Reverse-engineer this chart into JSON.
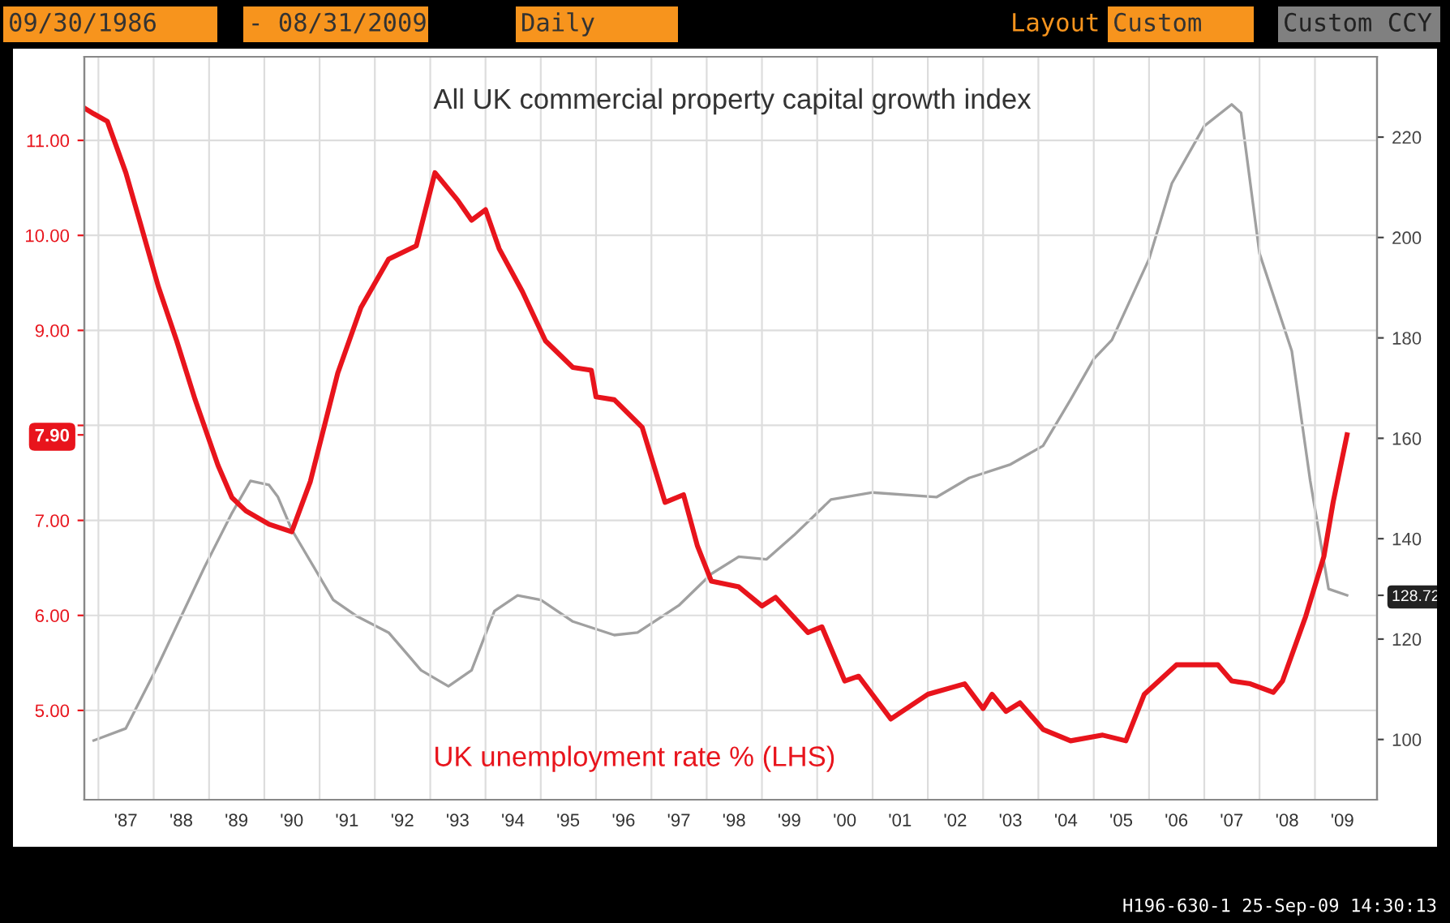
{
  "chart_data": {
    "type": "line",
    "title": "All UK commercial property capital growth index",
    "annotations": [
      "09/30/1986",
      "- 08/31/2009",
      "Daily",
      "Layout",
      "Custom",
      "Custom CCY",
      "H196-630-1 25-Sep-09 14:30:13"
    ],
    "xlim": [
      "1986-09-30",
      "2010-02-15"
    ],
    "xticks": [
      {
        "value": "1987-01-01",
        "label": null
      },
      {
        "value": "1988-01-01",
        "label": null
      },
      {
        "value": "1989-01-01",
        "label": null
      },
      {
        "value": "1990-01-01",
        "label": null
      },
      {
        "value": "1991-01-01",
        "label": null
      },
      {
        "value": "1992-01-01",
        "label": null
      },
      {
        "value": "1993-01-01",
        "label": null
      },
      {
        "value": "1994-01-01",
        "label": null
      },
      {
        "value": "1995-01-01",
        "label": null
      },
      {
        "value": "1996-01-01",
        "label": null
      },
      {
        "value": "1997-01-01",
        "label": null
      },
      {
        "value": "1998-01-01",
        "label": null
      },
      {
        "value": "1999-01-01",
        "label": null
      },
      {
        "value": "2000-01-01",
        "label": null
      },
      {
        "value": "2001-01-01",
        "label": null
      },
      {
        "value": "2002-01-01",
        "label": null
      },
      {
        "value": "2003-01-01",
        "label": null
      },
      {
        "value": "2004-01-01",
        "label": null
      },
      {
        "value": "2005-01-01",
        "label": null
      },
      {
        "value": "2006-01-01",
        "label": null
      },
      {
        "value": "2007-01-01",
        "label": null
      },
      {
        "value": "2008-01-01",
        "label": null
      },
      {
        "value": "2009-01-01",
        "label": null
      },
      {
        "value": "1987-07-01",
        "label": "'87"
      },
      {
        "value": "1988-07-01",
        "label": "'88"
      },
      {
        "value": "1989-07-01",
        "label": "'89"
      },
      {
        "value": "1990-07-01",
        "label": "'90"
      },
      {
        "value": "1991-07-01",
        "label": "'91"
      },
      {
        "value": "1992-07-01",
        "label": "'92"
      },
      {
        "value": "1993-07-01",
        "label": "'93"
      },
      {
        "value": "1994-07-01",
        "label": "'94"
      },
      {
        "value": "1995-07-01",
        "label": "'95"
      },
      {
        "value": "1996-07-01",
        "label": "'96"
      },
      {
        "value": "1997-07-01",
        "label": "'97"
      },
      {
        "value": "1998-07-01",
        "label": "'98"
      },
      {
        "value": "1999-07-01",
        "label": "'99"
      },
      {
        "value": "2000-07-01",
        "label": "'00"
      },
      {
        "value": "2001-07-01",
        "label": "'01"
      },
      {
        "value": "2002-07-01",
        "label": "'02"
      },
      {
        "value": "2003-07-01",
        "label": "'03"
      },
      {
        "value": "2004-07-01",
        "label": "'04"
      },
      {
        "value": "2005-07-01",
        "label": "'05"
      },
      {
        "value": "2006-07-01",
        "label": "'06"
      },
      {
        "value": "2007-07-01",
        "label": "'07"
      },
      {
        "value": "2008-07-01",
        "label": "'08"
      },
      {
        "value": "2009-07-01",
        "label": "'09"
      }
    ],
    "ylim": [
      4.06,
      11.88
    ],
    "yticks": [
      {
        "value": 5,
        "label": "5.00"
      },
      {
        "value": 6,
        "label": "6.00"
      },
      {
        "value": 7,
        "label": "7.00"
      },
      {
        "value": 8,
        "label": null
      },
      {
        "value": 9,
        "label": "9.00"
      },
      {
        "value": 10,
        "label": "10.00"
      },
      {
        "value": 11,
        "label": "11.00"
      },
      {
        "value": 7.9,
        "label": "7.90"
      }
    ],
    "y2lim": [
      88,
      236
    ],
    "y2ticks": [
      100,
      120,
      140,
      160,
      180,
      200,
      220,
      {
        "value": 128.72,
        "label": "128.72"
      }
    ],
    "grid": true,
    "legend": false,
    "series": [
      {
        "name": "UK unemployment rate % (LHS)",
        "color": "#e8141c",
        "x": [
          "1986-10",
          "1986-12",
          "1987-03",
          "1987-07",
          "1987-10",
          "1988-02",
          "1988-06",
          "1988-10",
          "1989-03",
          "1989-06",
          "1989-09",
          "1990-02",
          "1990-07",
          "1990-11",
          "1991-05",
          "1991-10",
          "1992-04",
          "1992-10",
          "1993-02",
          "1993-07",
          "1993-10",
          "1994-01",
          "1994-04",
          "1994-09",
          "1995-02",
          "1995-08",
          "1995-12",
          "1996-01",
          "1996-05",
          "1996-11",
          "1997-04",
          "1997-08",
          "1997-11",
          "1998-02",
          "1998-08",
          "1999-01",
          "1999-04",
          "1999-11",
          "2000-02",
          "2000-07",
          "2000-10",
          "2001-05",
          "2002-01",
          "2002-09",
          "2003-01",
          "2003-03",
          "2003-06",
          "2003-09",
          "2004-02",
          "2004-08",
          "2005-03",
          "2005-08",
          "2005-12",
          "2006-07",
          "2006-11",
          "2007-04",
          "2007-07",
          "2007-11",
          "2008-04",
          "2008-06",
          "2008-11",
          "2009-03",
          "2009-05",
          "2009-08"
        ],
        "values": [
          11.34,
          11.28,
          11.2,
          10.66,
          10.15,
          9.46,
          8.89,
          8.27,
          7.58,
          7.24,
          7.1,
          6.96,
          6.88,
          7.41,
          8.55,
          9.24,
          9.75,
          9.89,
          10.66,
          10.37,
          10.16,
          10.27,
          9.86,
          9.41,
          8.89,
          8.61,
          8.58,
          8.3,
          8.27,
          7.98,
          7.19,
          7.27,
          6.73,
          6.36,
          6.3,
          6.1,
          6.19,
          5.82,
          5.88,
          5.31,
          5.36,
          4.91,
          5.17,
          5.28,
          5.02,
          5.17,
          4.99,
          5.08,
          4.8,
          4.68,
          4.74,
          4.68,
          5.17,
          5.48,
          5.48,
          5.48,
          5.31,
          5.28,
          5.19,
          5.31,
          5.99,
          6.62,
          7.19,
          7.9
        ]
      },
      {
        "color": "#a0a0a0",
        "axis": "y2",
        "x": [
          "1986-12",
          "1987-07",
          "1988-02",
          "1988-12",
          "1989-06",
          "1989-10",
          "1990-02",
          "1990-04",
          "1990-07",
          "1991-04",
          "1991-09",
          "1992-04",
          "1992-11",
          "1993-05",
          "1993-10",
          "1994-03",
          "1994-08",
          "1995-01",
          "1995-08",
          "1996-05",
          "1996-10",
          "1997-07",
          "1998-02",
          "1998-08",
          "1999-02",
          "1999-08",
          "2000-04",
          "2001-01",
          "2002-03",
          "2002-10",
          "2003-07",
          "2004-02",
          "2004-08",
          "2005-01",
          "2005-05",
          "2006-01",
          "2006-06",
          "2007-01",
          "2007-07",
          "2007-09",
          "2008-01",
          "2008-08",
          "2008-12",
          "2009-04",
          "2009-08"
        ],
        "values": [
          99.8,
          102.2,
          114.9,
          134.3,
          145.1,
          151.5,
          150.7,
          148.3,
          141.8,
          127.8,
          124.6,
          121.3,
          113.8,
          110.6,
          113.8,
          125.6,
          128.7,
          127.8,
          123.5,
          120.8,
          121.3,
          126.7,
          133,
          136.4,
          135.9,
          140.7,
          147.8,
          149.2,
          148.3,
          152.1,
          154.8,
          158.5,
          167.7,
          175.8,
          179.6,
          195.7,
          210.8,
          222.2,
          226.5,
          224.8,
          196.8,
          177.4,
          151.5,
          130,
          128.72
        ]
      }
    ]
  }
}
